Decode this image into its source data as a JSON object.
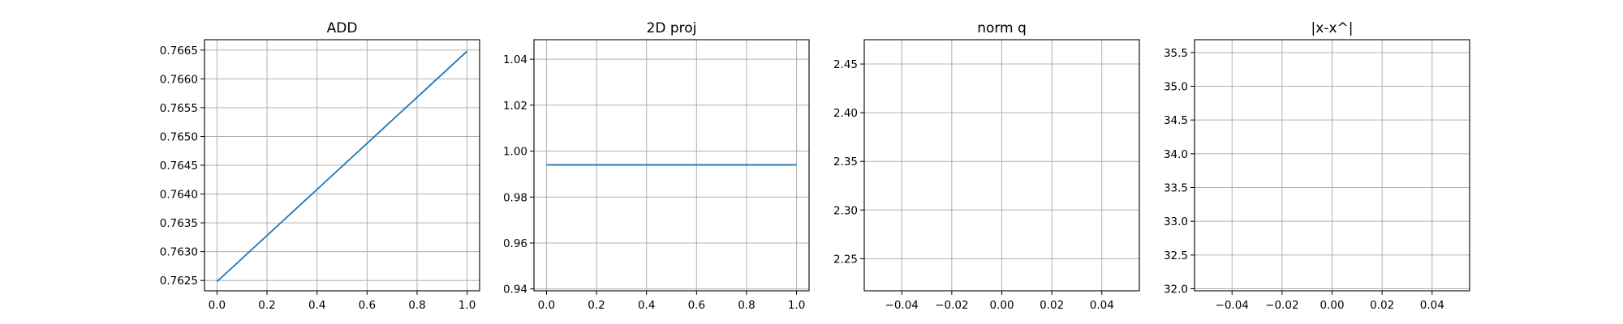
{
  "chart_data": [
    {
      "type": "line",
      "title": "ADD",
      "xlabel": "",
      "ylabel": "",
      "grid": true,
      "xlim": [
        -0.05,
        1.05
      ],
      "ylim": [
        0.76232,
        0.76668
      ],
      "xticks": [
        "0.0",
        "0.2",
        "0.4",
        "0.6",
        "0.8",
        "1.0"
      ],
      "yticks": [
        "0.7625",
        "0.7630",
        "0.7635",
        "0.7640",
        "0.7645",
        "0.7650",
        "0.7655",
        "0.7660",
        "0.7665"
      ],
      "series": [
        {
          "x": [
            0,
            1
          ],
          "y": [
            0.76248,
            0.76648
          ]
        }
      ]
    },
    {
      "type": "line",
      "title": "2D proj",
      "xlabel": "",
      "ylabel": "",
      "grid": true,
      "xlim": [
        -0.05,
        1.05
      ],
      "ylim": [
        0.9392,
        1.0485
      ],
      "xticks": [
        "0.0",
        "0.2",
        "0.4",
        "0.6",
        "0.8",
        "1.0"
      ],
      "yticks": [
        "0.94",
        "0.96",
        "0.98",
        "1.00",
        "1.02",
        "1.04"
      ],
      "series": [
        {
          "x": [
            0,
            1
          ],
          "y": [
            0.994,
            0.994
          ]
        }
      ]
    },
    {
      "type": "line",
      "title": "norm q",
      "xlabel": "",
      "ylabel": "",
      "grid": true,
      "xlim": [
        -0.055,
        0.055
      ],
      "ylim": [
        2.217,
        2.475
      ],
      "xticks": [
        "−0.04",
        "−0.02",
        "0.00",
        "0.02",
        "0.04"
      ],
      "yticks": [
        "2.25",
        "2.30",
        "2.35",
        "2.40",
        "2.45"
      ],
      "series": []
    },
    {
      "type": "line",
      "title": "|x-x^|",
      "xlabel": "",
      "ylabel": "",
      "grid": true,
      "xlim": [
        -0.055,
        0.055
      ],
      "ylim": [
        31.97,
        35.69
      ],
      "xticks": [
        "−0.04",
        "−0.02",
        "0.00",
        "0.02",
        "0.04"
      ],
      "yticks": [
        "32.0",
        "32.5",
        "33.0",
        "33.5",
        "34.0",
        "34.5",
        "35.0",
        "35.5"
      ],
      "series": []
    }
  ],
  "colors": {
    "line": "#1f77b4",
    "grid": "#b0b0b0",
    "axis": "#000000"
  }
}
